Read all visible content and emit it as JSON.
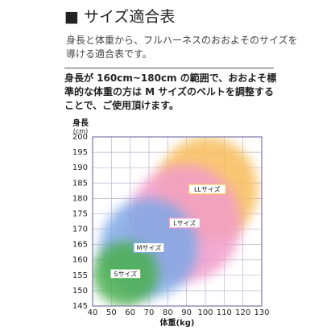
{
  "header": {
    "title": "■ サイズ適合表",
    "intro": "身長と体重から、フルハーネスのおおよそのサイズを導ける適合表です。",
    "note": "身長が 160cm~180cm の範囲で、おおよそ標準的な体重の方は M サイズのベルトを調整することで、ご使用頂けます。"
  },
  "chart_data": {
    "type": "region",
    "y_label": "身長",
    "y_unit": "(cm)",
    "x_label": "体重(kg)",
    "xlim": [
      40,
      130
    ],
    "xticks": [
      40,
      50,
      60,
      70,
      80,
      90,
      100,
      110,
      120,
      130
    ],
    "ylim": [
      145,
      200
    ],
    "yticks": [
      145,
      150,
      155,
      160,
      165,
      170,
      175,
      180,
      185,
      190,
      195,
      200
    ],
    "grid": true,
    "series": [
      {
        "name": "Sサイズ",
        "color": "#4caf50",
        "x": [
          40,
          75
        ],
        "y": [
          145,
          166
        ]
      },
      {
        "name": "Mサイズ",
        "color": "#7fa8e6",
        "x": [
          44,
          96
        ],
        "y": [
          148,
          180
        ]
      },
      {
        "name": "Lサイズ",
        "color": "#f29ccb",
        "x": [
          59,
          119
        ],
        "y": [
          153,
          191
        ]
      },
      {
        "name": "LLサイズ",
        "color": "#f8bd5c",
        "x": [
          74,
          128
        ],
        "y": [
          166,
          200
        ]
      }
    ]
  }
}
